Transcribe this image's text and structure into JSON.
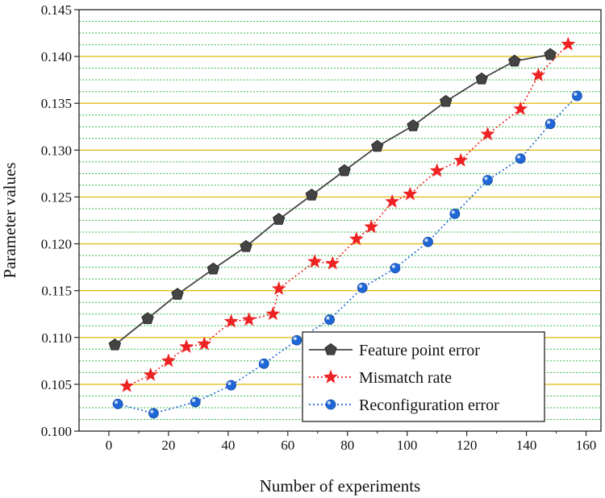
{
  "chart_data": {
    "type": "line",
    "title": "",
    "xlabel": "Number of experiments",
    "ylabel": "Parameter values",
    "xlim": [
      -10,
      165
    ],
    "ylim": [
      0.1,
      0.145
    ],
    "xticks": [
      0,
      20,
      40,
      60,
      80,
      100,
      120,
      140,
      160
    ],
    "xtick_labels": [
      "0",
      "20",
      "40",
      "60",
      "80",
      "100",
      "120",
      "140",
      "160"
    ],
    "yticks": [
      0.1,
      0.105,
      0.11,
      0.115,
      0.12,
      0.125,
      0.13,
      0.135,
      0.14,
      0.145
    ],
    "ytick_labels": [
      "0.100",
      "0.105",
      "0.110",
      "0.115",
      "0.120",
      "0.125",
      "0.130",
      "0.135",
      "0.140",
      "0.145"
    ],
    "grid": "horizontal",
    "legend_position": "bottom-right",
    "series": [
      {
        "name": "Feature point error",
        "marker": "pentagon",
        "line": "solid",
        "color": "#444444",
        "x": [
          2,
          13,
          23,
          35,
          46,
          57,
          68,
          79,
          90,
          102,
          113,
          125,
          136,
          148
        ],
        "y": [
          0.1092,
          0.112,
          0.1146,
          0.1173,
          0.1197,
          0.1226,
          0.1252,
          0.1278,
          0.1304,
          0.1326,
          0.1352,
          0.1376,
          0.1395,
          0.1402
        ]
      },
      {
        "name": "Mismatch rate",
        "marker": "star",
        "line": "dotted",
        "color": "#ee2222",
        "x": [
          6,
          14,
          20,
          26,
          32,
          41,
          47,
          55,
          57,
          69,
          75,
          83,
          88,
          95,
          101,
          110,
          118,
          127,
          138,
          144,
          154
        ],
        "y": [
          0.1048,
          0.106,
          0.1075,
          0.109,
          0.1093,
          0.1117,
          0.1119,
          0.1125,
          0.1152,
          0.1181,
          0.1179,
          0.1205,
          0.1218,
          0.1245,
          0.1253,
          0.1278,
          0.1289,
          0.1317,
          0.1344,
          0.138,
          0.1413
        ]
      },
      {
        "name": "Reconfiguration error",
        "marker": "circle",
        "line": "dotted",
        "color": "#1f66d6",
        "x": [
          3,
          15,
          29,
          41,
          52,
          63,
          74,
          85,
          96,
          107,
          116,
          127,
          138,
          148,
          157
        ],
        "y": [
          0.1029,
          0.1019,
          0.1031,
          0.1049,
          0.1072,
          0.1097,
          0.1119,
          0.1153,
          0.1174,
          0.1202,
          0.1232,
          0.1268,
          0.1291,
          0.1328,
          0.1358
        ]
      }
    ]
  }
}
